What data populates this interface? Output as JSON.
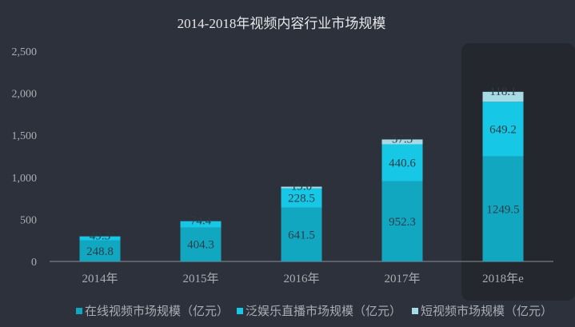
{
  "chart_data": {
    "type": "bar",
    "stacked": true,
    "title": "2014-2018年视频内容行业市场规模",
    "categories": [
      "2014年",
      "2015年",
      "2016年",
      "2017年",
      "2018年e"
    ],
    "series": [
      {
        "name": "在线视频市场规模（亿元）",
        "values": [
          248.8,
          404.3,
          641.5,
          952.3,
          1249.5
        ],
        "color": "#12a7c0"
      },
      {
        "name": "泛娱乐直播市场规模（亿元）",
        "values": [
          49.3,
          74.4,
          228.5,
          440.6,
          649.2
        ],
        "color": "#17c8e6"
      },
      {
        "name": "短视频市场规模（亿元）",
        "values": [
          null,
          null,
          19.0,
          57.3,
          118.1
        ],
        "color": "#a6dbe6"
      }
    ],
    "data_labels": [
      [
        "248.8",
        "404.3",
        "641.5",
        "952.3",
        "1249.5"
      ],
      [
        "49.3",
        "74.4",
        "228.5",
        "440.6",
        "649.2"
      ],
      [
        "",
        "",
        "19.0",
        "57.3",
        "118.1"
      ]
    ],
    "ylim": [
      0,
      2500
    ],
    "yticks": [
      0,
      500,
      1000,
      1500,
      2000,
      2500
    ],
    "ytick_labels": [
      "0",
      "500",
      "1,000",
      "1,500",
      "2,000",
      "2,500"
    ],
    "grid": false,
    "legend_position": "bottom",
    "highlight_category": "2018年e",
    "colors": {
      "background": "#2d313b",
      "highlight_panel": "#24272e",
      "axis_text": "#a9adb4",
      "title_text": "#e6e7ea",
      "label_text": "#2b3c47"
    }
  }
}
